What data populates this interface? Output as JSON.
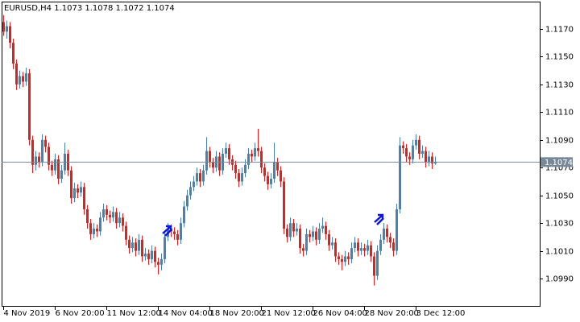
{
  "chart_data": {
    "type": "candlestick",
    "title": "EURUSD,H4  1.1073 1.1078 1.1072 1.1074",
    "up_color": "#4682b4",
    "down_color": "#e0201e",
    "ylim": [
      1.09703,
      1.11897
    ],
    "yticks": [
      {
        "value": 1.099,
        "label": "1.0990"
      },
      {
        "value": 1.101,
        "label": "1.1010"
      },
      {
        "value": 1.103,
        "label": "1.1030"
      },
      {
        "value": 1.105,
        "label": "1.1050"
      },
      {
        "value": 1.107,
        "label": "1.1070"
      },
      {
        "value": 1.109,
        "label": "1.1090"
      },
      {
        "value": 1.111,
        "label": "1.1110"
      },
      {
        "value": 1.113,
        "label": "1.1130"
      },
      {
        "value": 1.115,
        "label": "1.1150"
      },
      {
        "value": 1.117,
        "label": "1.1170"
      }
    ],
    "current_price": 1.1074,
    "categories": [
      "4 Nov 2019",
      null,
      null,
      null,
      null,
      null,
      null,
      null,
      null,
      null,
      null,
      null,
      null,
      null,
      null,
      null,
      "6 Nov 20:00",
      null,
      null,
      null,
      null,
      null,
      null,
      null,
      null,
      null,
      null,
      null,
      null,
      null,
      null,
      null,
      "11 Nov 12:00",
      null,
      null,
      null,
      null,
      null,
      null,
      null,
      null,
      null,
      null,
      null,
      null,
      null,
      null,
      null,
      "14 Nov 04:00",
      null,
      null,
      null,
      null,
      null,
      null,
      null,
      null,
      null,
      null,
      null,
      null,
      null,
      null,
      null,
      "18 Nov 20:00",
      null,
      null,
      null,
      null,
      null,
      null,
      null,
      null,
      null,
      null,
      null,
      null,
      null,
      null,
      null,
      "21 Nov 12:00",
      null,
      null,
      null,
      null,
      null,
      null,
      null,
      null,
      null,
      null,
      null,
      null,
      null,
      null,
      null,
      "26 Nov 04:00",
      null,
      null,
      null,
      null,
      null,
      null,
      null,
      null,
      null,
      null,
      null,
      null,
      null,
      null,
      null,
      "28 Nov 20:00",
      null,
      null,
      null,
      null,
      null,
      null,
      null,
      null,
      null,
      null,
      null,
      null,
      null,
      null,
      null,
      "3 Dec 12:00",
      null,
      null,
      null,
      null,
      null,
      null
    ],
    "ohlc": [
      [
        1.1175,
        1.118,
        1.1165,
        1.1168
      ],
      [
        1.1168,
        1.1176,
        1.1163,
        1.1172
      ],
      [
        1.1172,
        1.1175,
        1.1156,
        1.116
      ],
      [
        1.116,
        1.1163,
        1.1141,
        1.1145
      ],
      [
        1.1145,
        1.1148,
        1.1126,
        1.113
      ],
      [
        1.113,
        1.114,
        1.1127,
        1.1136
      ],
      [
        1.1136,
        1.1139,
        1.1128,
        1.1132
      ],
      [
        1.1132,
        1.1142,
        1.1129,
        1.1138
      ],
      [
        1.1138,
        1.1141,
        1.1086,
        1.109
      ],
      [
        1.109,
        1.1093,
        1.1066,
        1.1072
      ],
      [
        1.1072,
        1.1082,
        1.1068,
        1.1078
      ],
      [
        1.1078,
        1.1081,
        1.107,
        1.1074
      ],
      [
        1.1074,
        1.1094,
        1.1071,
        1.109
      ],
      [
        1.109,
        1.1093,
        1.1081,
        1.1085
      ],
      [
        1.1085,
        1.1088,
        1.1068,
        1.1072
      ],
      [
        1.1072,
        1.1075,
        1.1064,
        1.1068
      ],
      [
        1.1068,
        1.108,
        1.1065,
        1.1076
      ],
      [
        1.1076,
        1.1079,
        1.1058,
        1.1062
      ],
      [
        1.1062,
        1.1072,
        1.1059,
        1.1068
      ],
      [
        1.1068,
        1.1088,
        1.1065,
        1.108
      ],
      [
        1.108,
        1.1083,
        1.1064,
        1.1068
      ],
      [
        1.1068,
        1.1071,
        1.1044,
        1.1048
      ],
      [
        1.1048,
        1.1059,
        1.1045,
        1.1055
      ],
      [
        1.1055,
        1.1058,
        1.1048,
        1.1052
      ],
      [
        1.1052,
        1.106,
        1.1049,
        1.1056
      ],
      [
        1.1056,
        1.1059,
        1.1036,
        1.104
      ],
      [
        1.104,
        1.1043,
        1.1026,
        1.103
      ],
      [
        1.103,
        1.1033,
        1.1018,
        1.1022
      ],
      [
        1.1022,
        1.103,
        1.1019,
        1.1026
      ],
      [
        1.1026,
        1.1029,
        1.102,
        1.1024
      ],
      [
        1.1024,
        1.1038,
        1.1021,
        1.1034
      ],
      [
        1.1034,
        1.1044,
        1.1031,
        1.104
      ],
      [
        1.104,
        1.1043,
        1.1032,
        1.1036
      ],
      [
        1.1036,
        1.1039,
        1.103,
        1.1034
      ],
      [
        1.1034,
        1.1042,
        1.1031,
        1.1038
      ],
      [
        1.1038,
        1.1041,
        1.1026,
        1.103
      ],
      [
        1.103,
        1.1038,
        1.1027,
        1.1034
      ],
      [
        1.1034,
        1.1037,
        1.1024,
        1.1028
      ],
      [
        1.1028,
        1.1031,
        1.1014,
        1.1018
      ],
      [
        1.1018,
        1.1021,
        1.1008,
        1.1012
      ],
      [
        1.1012,
        1.102,
        1.1009,
        1.1016
      ],
      [
        1.1016,
        1.1019,
        1.1006,
        1.101
      ],
      [
        1.101,
        1.1022,
        1.1007,
        1.1018
      ],
      [
        1.1018,
        1.1021,
        1.1002,
        1.1006
      ],
      [
        1.1006,
        1.1012,
        1.1003,
        1.1008
      ],
      [
        1.1008,
        1.1011,
        1.1,
        1.1004
      ],
      [
        1.1004,
        1.1014,
        1.1001,
        1.101
      ],
      [
        1.101,
        1.1013,
        1.0998,
        1.1002
      ],
      [
        1.1002,
        1.1005,
        1.0993,
        1.1
      ],
      [
        1.1,
        1.1008,
        1.0996,
        1.1004
      ],
      [
        1.1004,
        1.1024,
        1.1001,
        1.102
      ],
      [
        1.102,
        1.103,
        1.1017,
        1.1026
      ],
      [
        1.1026,
        1.1029,
        1.102,
        1.1024
      ],
      [
        1.1024,
        1.1027,
        1.1018,
        1.1022
      ],
      [
        1.1022,
        1.1025,
        1.1014,
        1.1018
      ],
      [
        1.1018,
        1.1034,
        1.1015,
        1.103
      ],
      [
        1.103,
        1.1046,
        1.1027,
        1.1042
      ],
      [
        1.1042,
        1.1054,
        1.1039,
        1.105
      ],
      [
        1.105,
        1.106,
        1.1047,
        1.1056
      ],
      [
        1.1056,
        1.1064,
        1.1053,
        1.106
      ],
      [
        1.106,
        1.107,
        1.1057,
        1.1066
      ],
      [
        1.1066,
        1.1069,
        1.1056,
        1.106
      ],
      [
        1.106,
        1.1072,
        1.1057,
        1.1068
      ],
      [
        1.1068,
        1.1092,
        1.1065,
        1.1082
      ],
      [
        1.1082,
        1.1085,
        1.107,
        1.1074
      ],
      [
        1.1074,
        1.1077,
        1.1066,
        1.107
      ],
      [
        1.107,
        1.1082,
        1.1067,
        1.1078
      ],
      [
        1.1078,
        1.1081,
        1.1064,
        1.1068
      ],
      [
        1.1068,
        1.1084,
        1.1065,
        1.108
      ],
      [
        1.108,
        1.1088,
        1.1077,
        1.1084
      ],
      [
        1.1084,
        1.1087,
        1.1072,
        1.1076
      ],
      [
        1.1076,
        1.1079,
        1.1068,
        1.1072
      ],
      [
        1.1072,
        1.1075,
        1.1062,
        1.1066
      ],
      [
        1.1066,
        1.1069,
        1.1056,
        1.106
      ],
      [
        1.106,
        1.107,
        1.1057,
        1.1066
      ],
      [
        1.1066,
        1.1076,
        1.1063,
        1.1072
      ],
      [
        1.1072,
        1.1084,
        1.1069,
        1.108
      ],
      [
        1.108,
        1.1083,
        1.1074,
        1.1078
      ],
      [
        1.1078,
        1.1088,
        1.1075,
        1.1084
      ],
      [
        1.1084,
        1.1098,
        1.1078,
        1.1082
      ],
      [
        1.1082,
        1.1085,
        1.1066,
        1.107
      ],
      [
        1.107,
        1.1073,
        1.106,
        1.1064
      ],
      [
        1.1064,
        1.1067,
        1.1054,
        1.1058
      ],
      [
        1.1058,
        1.1066,
        1.1055,
        1.1062
      ],
      [
        1.1062,
        1.1088,
        1.1059,
        1.1074
      ],
      [
        1.1074,
        1.1077,
        1.1064,
        1.1068
      ],
      [
        1.1068,
        1.1071,
        1.1056,
        1.106
      ],
      [
        1.106,
        1.1063,
        1.1022,
        1.1026
      ],
      [
        1.1026,
        1.1029,
        1.1016,
        1.102
      ],
      [
        1.102,
        1.1034,
        1.1017,
        1.103
      ],
      [
        1.103,
        1.1033,
        1.102,
        1.1024
      ],
      [
        1.1024,
        1.103,
        1.1021,
        1.1026
      ],
      [
        1.1026,
        1.1029,
        1.1008,
        1.1012
      ],
      [
        1.1012,
        1.1015,
        1.1006,
        1.101
      ],
      [
        1.101,
        1.1026,
        1.1007,
        1.1022
      ],
      [
        1.1022,
        1.1025,
        1.1016,
        1.102
      ],
      [
        1.102,
        1.1028,
        1.1017,
        1.1024
      ],
      [
        1.1024,
        1.1027,
        1.1014,
        1.1018
      ],
      [
        1.1018,
        1.103,
        1.1015,
        1.1026
      ],
      [
        1.1026,
        1.1034,
        1.1023,
        1.1028
      ],
      [
        1.1028,
        1.1031,
        1.1018,
        1.1022
      ],
      [
        1.1022,
        1.1025,
        1.101,
        1.1014
      ],
      [
        1.1014,
        1.102,
        1.1011,
        1.1016
      ],
      [
        1.1016,
        1.1019,
        1.1002,
        1.1006
      ],
      [
        1.1006,
        1.1009,
        1.1,
        1.1004
      ],
      [
        1.1004,
        1.1007,
        1.0996,
        1.1002
      ],
      [
        1.1002,
        1.101,
        1.0999,
        1.1006
      ],
      [
        1.1006,
        1.1009,
        1.1,
        1.1004
      ],
      [
        1.1004,
        1.1016,
        1.1001,
        1.1012
      ],
      [
        1.1012,
        1.102,
        1.1009,
        1.1016
      ],
      [
        1.1016,
        1.1019,
        1.1006,
        1.101
      ],
      [
        1.101,
        1.1016,
        1.1007,
        1.1012
      ],
      [
        1.1012,
        1.1015,
        1.1006,
        1.101
      ],
      [
        1.101,
        1.1018,
        1.1007,
        1.1014
      ],
      [
        1.1014,
        1.1017,
        1.1002,
        1.1006
      ],
      [
        1.1006,
        1.1009,
        1.0985,
        1.0992
      ],
      [
        1.0992,
        1.1014,
        1.0989,
        1.101
      ],
      [
        1.101,
        1.1022,
        1.1007,
        1.1018
      ],
      [
        1.1018,
        1.103,
        1.1015,
        1.1026
      ],
      [
        1.1026,
        1.1029,
        1.1016,
        1.102
      ],
      [
        1.102,
        1.1023,
        1.1012,
        1.1016
      ],
      [
        1.1016,
        1.1019,
        1.1006,
        1.101
      ],
      [
        1.101,
        1.1044,
        1.1007,
        1.104
      ],
      [
        1.104,
        1.1092,
        1.1037,
        1.1086
      ],
      [
        1.1086,
        1.1089,
        1.108,
        1.1084
      ],
      [
        1.1084,
        1.1087,
        1.1074,
        1.1078
      ],
      [
        1.1078,
        1.1081,
        1.1072,
        1.1076
      ],
      [
        1.1076,
        1.109,
        1.1073,
        1.1086
      ],
      [
        1.1086,
        1.1094,
        1.1083,
        1.109
      ],
      [
        1.109,
        1.1093,
        1.1076,
        1.108
      ],
      [
        1.108,
        1.1086,
        1.1077,
        1.1082
      ],
      [
        1.1082,
        1.1085,
        1.107,
        1.1074
      ],
      [
        1.1074,
        1.1082,
        1.1071,
        1.1078
      ],
      [
        1.1078,
        1.1081,
        1.1069,
        1.1073
      ],
      [
        1.1073,
        1.1078,
        1.1072,
        1.1074
      ]
    ]
  }
}
